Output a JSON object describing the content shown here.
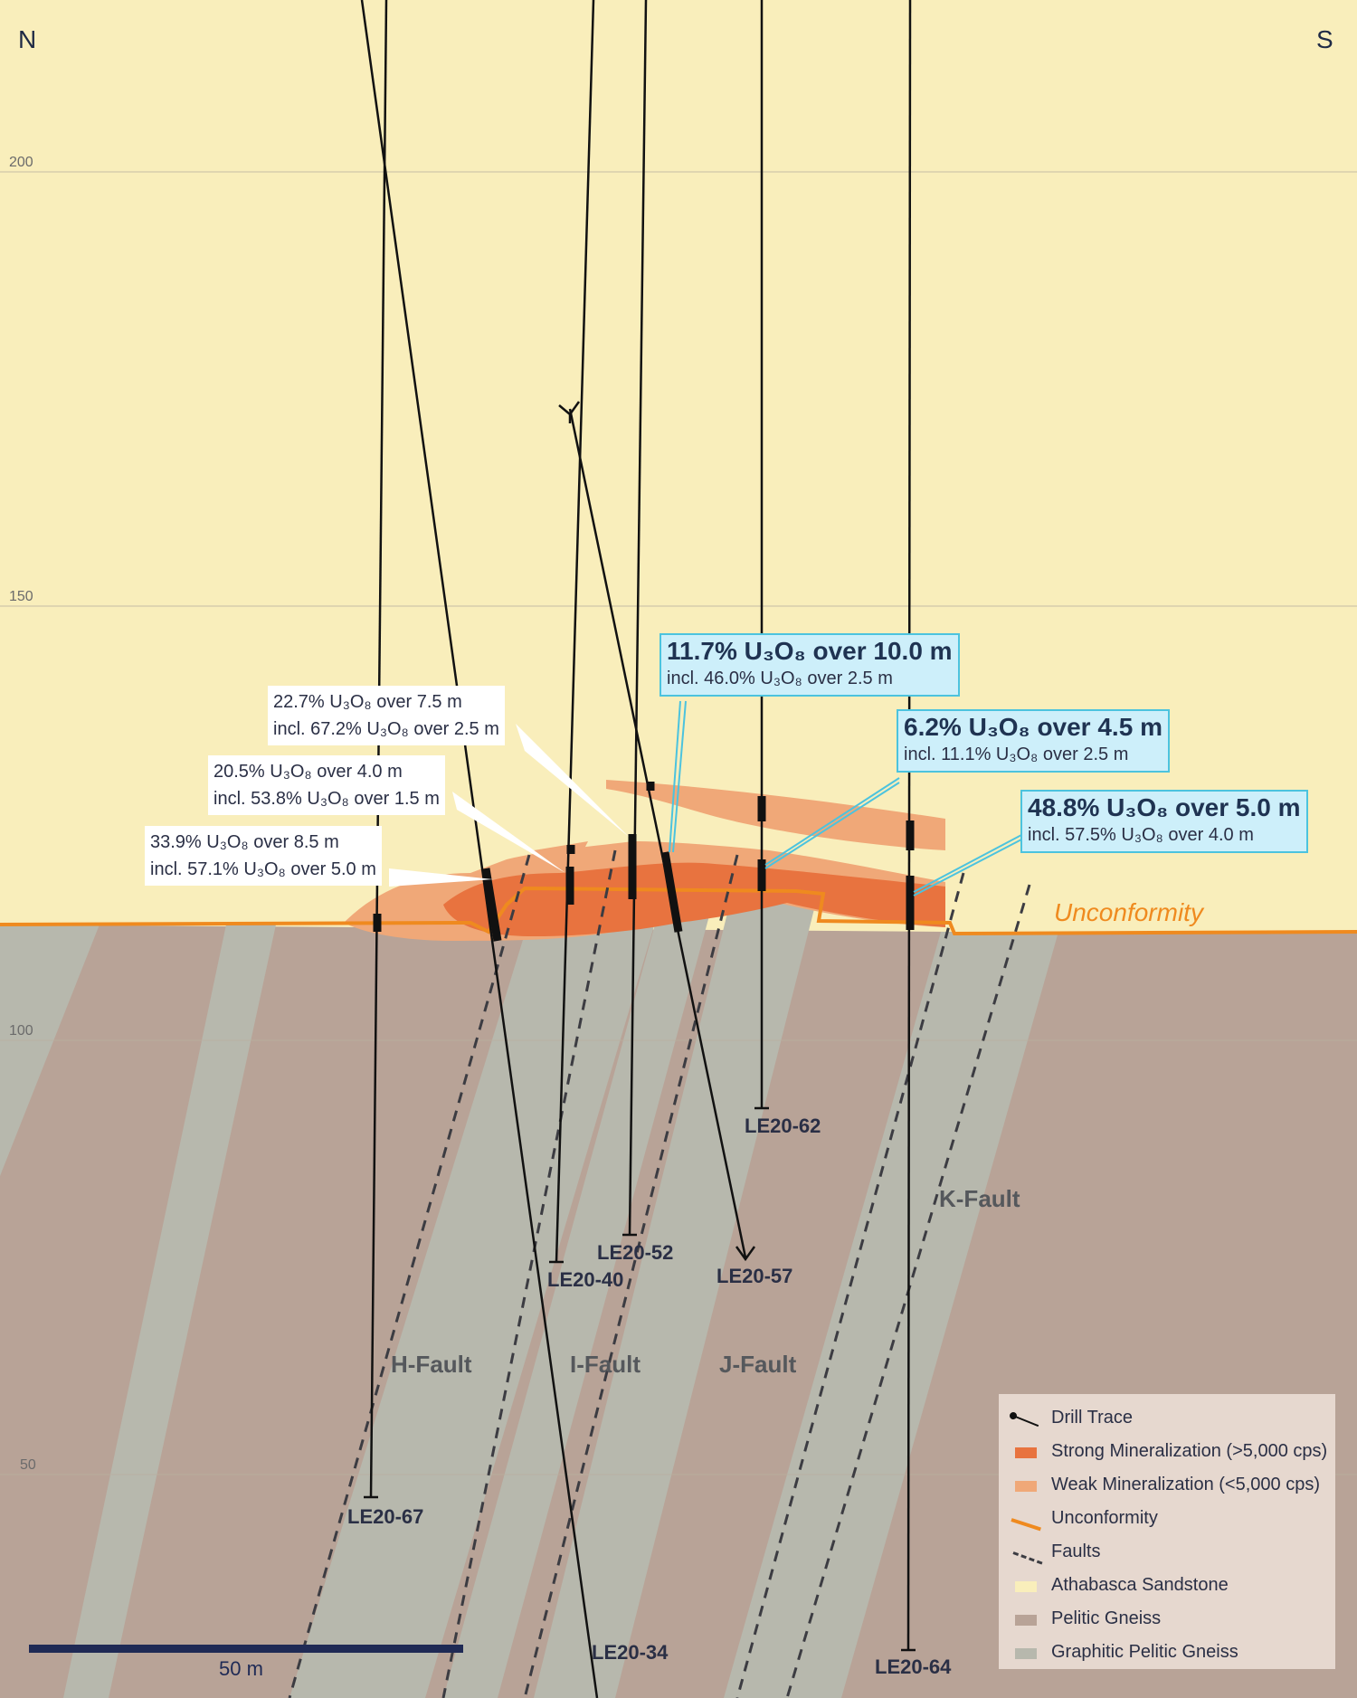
{
  "compass": {
    "north": "N",
    "south": "S"
  },
  "elevation_labels": [
    "200",
    "150",
    "100",
    "50"
  ],
  "faults": [
    {
      "id": "H",
      "label": "H-Fault"
    },
    {
      "id": "I",
      "label": "I-Fault"
    },
    {
      "id": "J",
      "label": "J-Fault"
    },
    {
      "id": "K",
      "label": "K-Fault"
    }
  ],
  "unconformity_label": "Unconformity",
  "drill_holes": [
    {
      "id": "LE20-67",
      "label": "LE20-67"
    },
    {
      "id": "LE20-34",
      "label": "LE20-34"
    },
    {
      "id": "LE20-40",
      "label": "LE20-40"
    },
    {
      "id": "LE20-52",
      "label": "LE20-52"
    },
    {
      "id": "LE20-57",
      "label": "LE20-57"
    },
    {
      "id": "LE20-62",
      "label": "LE20-62"
    },
    {
      "id": "LE20-64",
      "label": "LE20-64"
    }
  ],
  "callouts": {
    "c1": {
      "line1": "33.9% U₃O₈ over 8.5 m",
      "line2": "incl. 57.1% U₃O₈ over 5.0 m"
    },
    "c2": {
      "line1": "20.5% U₃O₈ over 4.0 m",
      "line2": "incl. 53.8% U₃O₈ over 1.5 m"
    },
    "c3": {
      "line1": "22.7% U₃O₈ over 7.5 m",
      "line2": "incl. 67.2% U₃O₈ over 2.5 m"
    },
    "c4": {
      "line1": "11.7% U₃O₈ over 10.0 m",
      "line2": "incl. 46.0% U₃O₈ over 2.5 m"
    },
    "c5": {
      "line1": "6.2% U₃O₈ over 4.5 m",
      "line2": "incl. 11.1% U₃O₈ over 2.5 m"
    },
    "c6": {
      "line1": "48.8% U₃O₈ over 5.0 m",
      "line2": "incl. 57.5% U₃O₈ over 4.0 m"
    }
  },
  "legend": {
    "drill_trace": "Drill Trace",
    "strong": "Strong Mineralization (>5,000 cps)",
    "weak": "Weak Mineralization (<5,000 cps)",
    "unconformity": "Unconformity",
    "faults": "Faults",
    "sandstone": "Athabasca Sandstone",
    "pelitic": "Pelitic Gneiss",
    "graphitic": "Graphitic Pelitic Gneiss"
  },
  "scale_bar_label": "50 m",
  "colors": {
    "sandstone": "#f9eebb",
    "pelitic_gneiss": "#b8a397",
    "graphitic_gneiss": "#b7b8ad",
    "strong_mineralization": "#e8733f",
    "weak_mineralization": "#f0a878",
    "unconformity": "#ef8a1f",
    "highlight_box": "#cdeffa",
    "highlight_border": "#4cc3de"
  }
}
